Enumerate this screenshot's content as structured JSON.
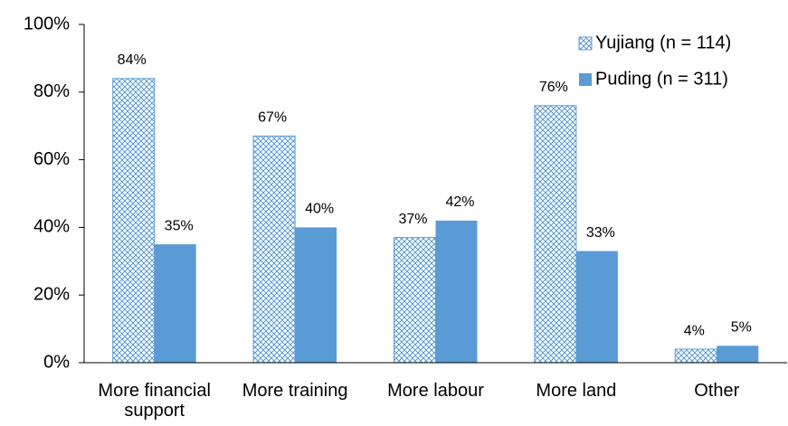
{
  "chart_data": {
    "type": "bar",
    "categories": [
      "More financial support",
      "More training",
      "More labour",
      "More land",
      "Other"
    ],
    "series": [
      {
        "name": "Yujiang (n = 114)",
        "color": "#5b9bd5",
        "pattern": "crosshatch",
        "values": [
          84,
          67,
          37,
          76,
          4
        ],
        "value_labels": [
          "84%",
          "67%",
          "37%",
          "76%",
          "4%"
        ]
      },
      {
        "name": "Puding (n = 311)",
        "color": "#5b9bd5",
        "values": [
          35,
          40,
          42,
          33,
          5
        ],
        "value_labels": [
          "35%",
          "40%",
          "42%",
          "33%",
          "5%"
        ]
      }
    ],
    "ylim": [
      0,
      100
    ],
    "yticks": [
      {
        "value": 0,
        "label": "0%"
      },
      {
        "value": 20,
        "label": "20%"
      },
      {
        "value": 40,
        "label": "40%"
      },
      {
        "value": 60,
        "label": "60%"
      },
      {
        "value": 80,
        "label": "80%"
      },
      {
        "value": 100,
        "label": "100%"
      }
    ],
    "grid": false,
    "legend": "upper right"
  }
}
